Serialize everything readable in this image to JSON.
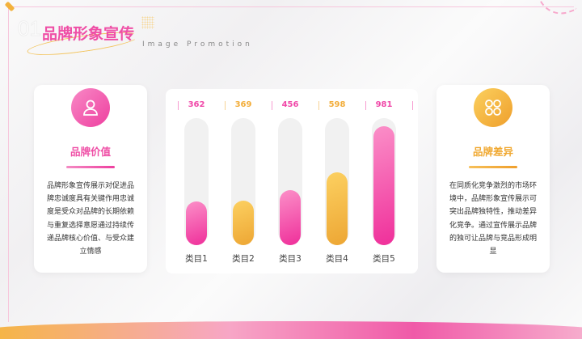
{
  "header": {
    "number": "01",
    "title": "品牌形象宣传",
    "subtitle": "Image Promotion"
  },
  "left_card": {
    "icon": "user-icon",
    "title": "品牌价值",
    "text": "品牌形象宣传展示对促进品牌忠诚度具有关键作用忠诚度是受众对品牌的长期依赖与重复选择意愿通过持续传递品牌核心价值、与受众建立情感",
    "color": "#ef4fa6"
  },
  "right_card": {
    "icon": "grid-icon",
    "title": "品牌差异",
    "text": "在同质化竞争激烈的市场环境中，品牌形象宣传展示可突出品牌独特性，推动差异化竞争。通过宣传展示品牌的独可让品牌与竞品形成明显",
    "color": "#f0a830"
  },
  "chart_data": {
    "type": "bar",
    "categories": [
      "类目1",
      "类目2",
      "类目3",
      "类目4",
      "类目5"
    ],
    "values": [
      362,
      369,
      456,
      598,
      981
    ],
    "value_labels": [
      "362",
      "369",
      "456",
      "598",
      "981"
    ],
    "ylim": [
      0,
      1000
    ],
    "grid": false,
    "colors": [
      "#f048a8",
      "#f2ad3a",
      "#f048a8",
      "#f2ad3a",
      "#f048a8"
    ]
  }
}
